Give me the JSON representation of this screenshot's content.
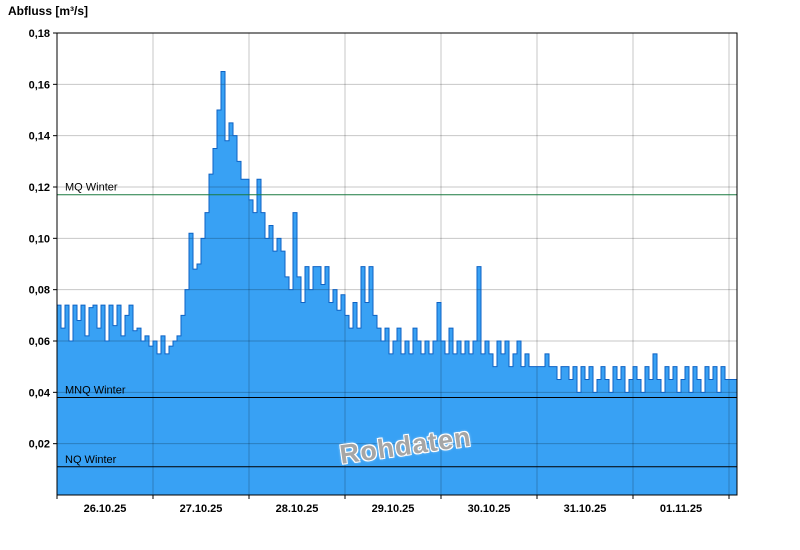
{
  "header": {
    "title": "Abfluss [m³/s]"
  },
  "watermark": {
    "text": "Rohdaten"
  },
  "colors": {
    "background": "#ffffff",
    "area_fill": "#38a1f4",
    "area_outline": "#0e62c4",
    "grid_overlay": "rgba(0,0,0,0.22)",
    "border": "#000000",
    "mq_line": "#1a7a40",
    "low_lines": "#000000",
    "watermark": "#a6a6a6"
  },
  "chart_data": {
    "type": "area",
    "title": "Abfluss [m³/s]",
    "ylabel": "Abfluss [m³/s]",
    "xlabel": "",
    "ylim": [
      0,
      0.18
    ],
    "ytick_step": 0.02,
    "grid": true,
    "x_start": "26.10.25",
    "interval_hours": 1,
    "total_hours": 170,
    "x_day_labels": [
      "26.10.25",
      "27.10.25",
      "28.10.25",
      "29.10.25",
      "30.10.25",
      "31.10.25",
      "01.11.25"
    ],
    "series": [
      {
        "name": "Rohdaten",
        "values": [
          0.074,
          0.065,
          0.074,
          0.06,
          0.074,
          0.068,
          0.074,
          0.062,
          0.073,
          0.074,
          0.065,
          0.074,
          0.06,
          0.074,
          0.066,
          0.074,
          0.062,
          0.07,
          0.074,
          0.064,
          0.065,
          0.06,
          0.062,
          0.058,
          0.06,
          0.055,
          0.062,
          0.055,
          0.058,
          0.06,
          0.062,
          0.07,
          0.08,
          0.102,
          0.088,
          0.09,
          0.1,
          0.11,
          0.125,
          0.135,
          0.15,
          0.165,
          0.138,
          0.145,
          0.14,
          0.13,
          0.123,
          0.123,
          0.115,
          0.11,
          0.123,
          0.11,
          0.1,
          0.105,
          0.095,
          0.1,
          0.095,
          0.085,
          0.08,
          0.11,
          0.085,
          0.075,
          0.089,
          0.08,
          0.089,
          0.089,
          0.082,
          0.089,
          0.075,
          0.08,
          0.072,
          0.078,
          0.07,
          0.065,
          0.075,
          0.065,
          0.089,
          0.075,
          0.089,
          0.07,
          0.065,
          0.06,
          0.065,
          0.055,
          0.06,
          0.065,
          0.055,
          0.06,
          0.055,
          0.065,
          0.06,
          0.055,
          0.06,
          0.055,
          0.06,
          0.075,
          0.06,
          0.055,
          0.065,
          0.055,
          0.06,
          0.055,
          0.06,
          0.055,
          0.06,
          0.089,
          0.055,
          0.06,
          0.055,
          0.05,
          0.06,
          0.055,
          0.06,
          0.05,
          0.055,
          0.06,
          0.05,
          0.055,
          0.05,
          0.05,
          0.05,
          0.05,
          0.055,
          0.05,
          0.05,
          0.045,
          0.05,
          0.05,
          0.045,
          0.05,
          0.04,
          0.05,
          0.045,
          0.05,
          0.04,
          0.045,
          0.05,
          0.045,
          0.04,
          0.05,
          0.045,
          0.05,
          0.04,
          0.045,
          0.05,
          0.045,
          0.04,
          0.05,
          0.045,
          0.055,
          0.045,
          0.04,
          0.05,
          0.045,
          0.05,
          0.04,
          0.045,
          0.05,
          0.04,
          0.05,
          0.045,
          0.04,
          0.05,
          0.045,
          0.05,
          0.04,
          0.05,
          0.045
        ]
      }
    ],
    "reference_lines": [
      {
        "label": "MQ Winter",
        "value": 0.117,
        "color": "#1a7a40"
      },
      {
        "label": "MNQ Winter",
        "value": 0.038,
        "color": "#000000"
      },
      {
        "label": "NQ Winter",
        "value": 0.011,
        "color": "#000000"
      }
    ]
  }
}
